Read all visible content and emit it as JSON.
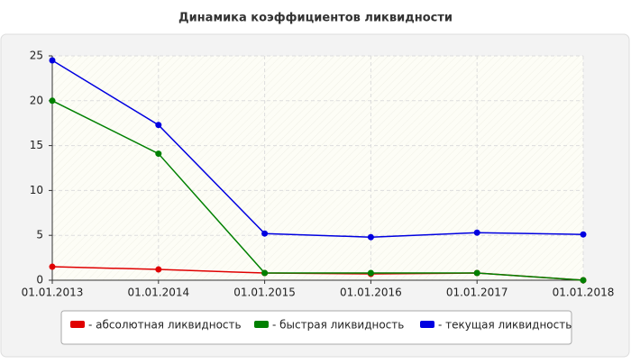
{
  "chart_data": {
    "type": "line",
    "title": "Динамика коэффициентов ликвидности",
    "categories": [
      "01.01.2013",
      "01.01.2014",
      "01.01.2015",
      "01.01.2016",
      "01.01.2017",
      "01.01.2018"
    ],
    "series": [
      {
        "name": "- абсолютная ликвидность",
        "color": "#e00000",
        "values": [
          1.5,
          1.2,
          0.8,
          0.7,
          0.8,
          0
        ]
      },
      {
        "name": "- быстрая ликвидность",
        "color": "#008000",
        "values": [
          20,
          14.1,
          0.8,
          0.8,
          0.8,
          0
        ]
      },
      {
        "name": "- текущая ликвидность",
        "color": "#0000e0",
        "values": [
          24.5,
          17.3,
          5.2,
          4.8,
          5.3,
          5.1
        ]
      }
    ],
    "ylim": [
      0,
      25
    ],
    "yticks": [
      0,
      5,
      10,
      15,
      20,
      25
    ],
    "grid": true
  }
}
